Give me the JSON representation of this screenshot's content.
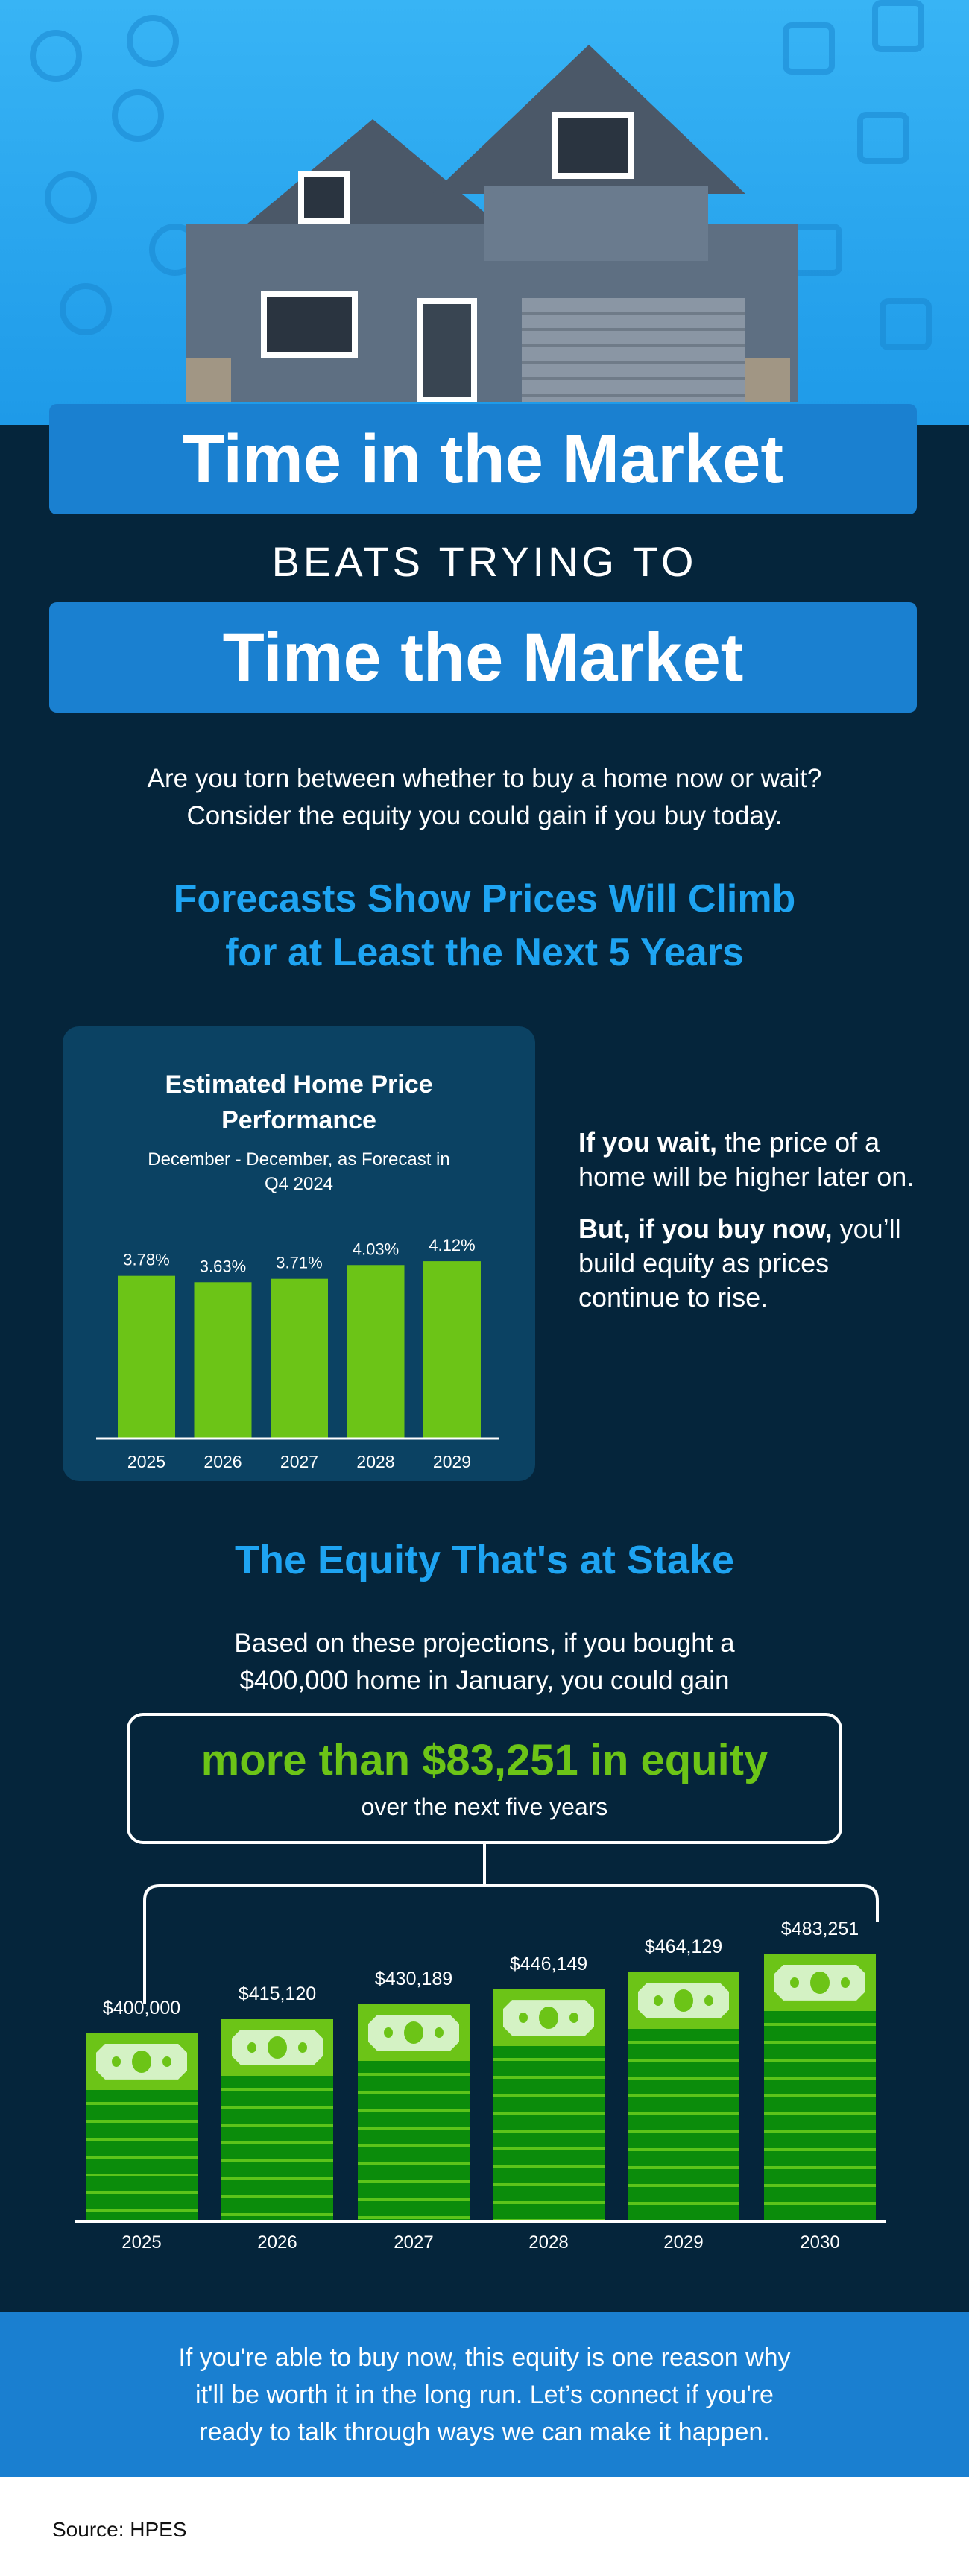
{
  "title_line1": "Time in the Market",
  "title_middle": "BEATS TRYING TO",
  "title_line2": "Time the Market",
  "intro": [
    "Are you torn between whether to buy a home now or wait?",
    "Consider the equity you could gain if you buy today."
  ],
  "forecast_heading": [
    "Forecasts Show Prices Will Climb",
    "for at Least the Next 5 Years"
  ],
  "side_text": {
    "p1_bold": "If you wait,",
    "p1_rest": " the price of a home will be higher later on.",
    "p2_bold": "But, if you buy now,",
    "p2_rest": " you’ll build equity as prices continue to rise."
  },
  "equity_heading": "The Equity That's at Stake",
  "equity_intro": [
    "Based on these projections, if you bought a",
    "$400,000 home in January, you could gain"
  ],
  "equity_box": {
    "headline": "more than $83,251 in equity",
    "sub": "over the next five years"
  },
  "footer_text": [
    "If you're able to buy now, this equity is one reason why",
    "it'll be worth it in the long run. Let’s connect if you're",
    "ready to talk through ways we can make it happen."
  ],
  "source": "Source: HPES",
  "colors": {
    "background": "#05253b",
    "accent_blue": "#1a80d0",
    "heading_blue": "#1ea4f2",
    "green": "#6cc417",
    "dark_green": "#0b8c0b"
  },
  "chart_data": [
    {
      "type": "bar",
      "title": "Estimated Home Price Performance",
      "subtitle": "December - December, as Forecast in Q4 2024",
      "categories": [
        "2025",
        "2026",
        "2027",
        "2028",
        "2029"
      ],
      "values": [
        3.78,
        3.63,
        3.71,
        4.03,
        4.12
      ],
      "labels": [
        "3.78%",
        "3.63%",
        "3.71%",
        "4.03%",
        "4.12%"
      ],
      "unit": "%"
    },
    {
      "type": "bar",
      "categories": [
        "2025",
        "2026",
        "2027",
        "2028",
        "2029",
        "2030"
      ],
      "values": [
        400000,
        415120,
        430189,
        446149,
        464129,
        483251
      ],
      "labels": [
        "$400,000",
        "$415,120",
        "$430,189",
        "$446,149",
        "$464,129",
        "$483,251"
      ]
    }
  ]
}
